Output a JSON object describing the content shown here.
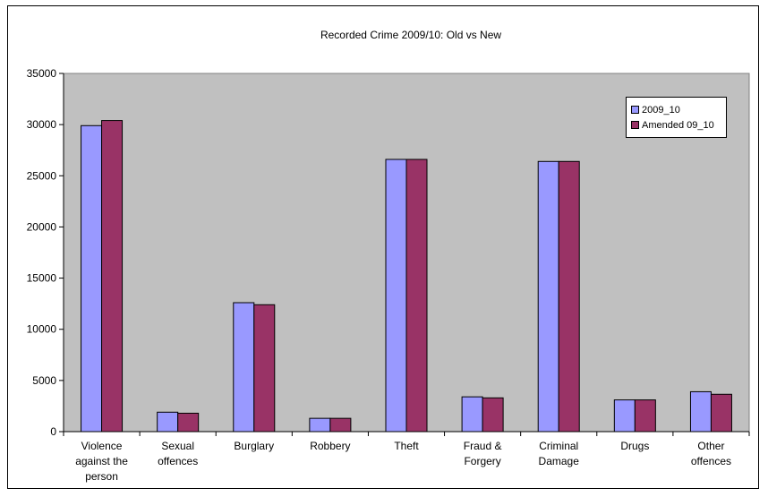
{
  "chart_data": {
    "type": "bar",
    "title": "Recorded Crime 2009/10: Old vs New",
    "xlabel": "",
    "ylabel": "",
    "categories": [
      [
        "Violence",
        "against the",
        "person"
      ],
      [
        "Sexual",
        "offences"
      ],
      [
        "Burglary"
      ],
      [
        "Robbery"
      ],
      [
        "Theft"
      ],
      [
        "Fraud &",
        "Forgery"
      ],
      [
        "Criminal",
        "Damage"
      ],
      [
        "Drugs"
      ],
      [
        "Other",
        "offences"
      ]
    ],
    "series": [
      {
        "name": "2009_10",
        "color": "#9999ff",
        "values": [
          29900,
          1900,
          12600,
          1300,
          26600,
          3400,
          26400,
          3100,
          3900
        ]
      },
      {
        "name": "Amended 09_10",
        "color": "#993366",
        "values": [
          30400,
          1800,
          12400,
          1300,
          26600,
          3300,
          26400,
          3100,
          3650
        ]
      }
    ],
    "ylim": [
      0,
      35000
    ],
    "yticks": [
      "0",
      "5000",
      "10000",
      "15000",
      "20000",
      "25000",
      "30000",
      "35000"
    ],
    "plot_background": "#c0c0c0",
    "grid": false,
    "legend_position": "top-right"
  }
}
